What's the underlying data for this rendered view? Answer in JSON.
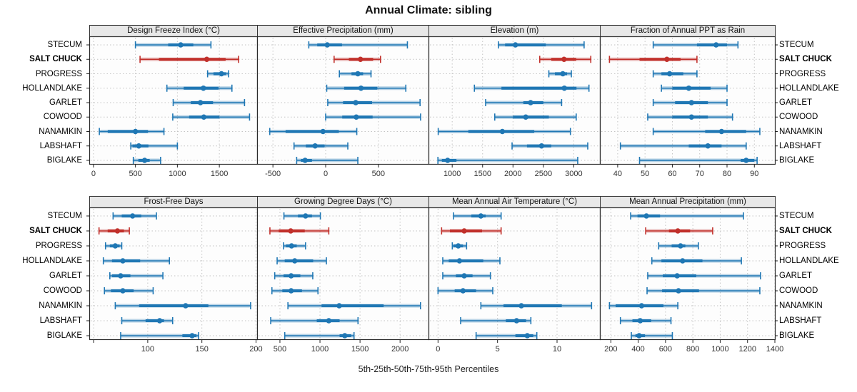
{
  "title": "Annual Climate: sibling",
  "xlabel": "5th-25th-50th-75th-95th Percentiles",
  "percentiles": [
    "5th",
    "25th",
    "50th",
    "75th",
    "95th"
  ],
  "locations": [
    "STECUM",
    "SALT CHUCK",
    "PROGRESS",
    "HOLLANDLAKE",
    "GARLET",
    "COWOOD",
    "NANAMKIN",
    "LABSHAFT",
    "BIGLAKE"
  ],
  "highlighted_location": "SALT CHUCK",
  "colors": {
    "series_blue": "#1F77B4",
    "highlight_red": "#C1302B",
    "header_bg": "#E8E8E8",
    "grid": "#C4C4C4",
    "border": "#2A2A2A",
    "tick_text": "#333333"
  },
  "chart_data": {
    "type": "pointrange",
    "legend_position": "none",
    "grid": "dotted",
    "note": "values per location are [p5, p25, p50, p75, p95]",
    "panels": [
      {
        "title": "Design Freeze Index (°C)",
        "row": 0,
        "col": 0,
        "xlim": [
          -50,
          1950
        ],
        "ticks": [
          0,
          500,
          1000,
          1500
        ],
        "tick_labels": [
          "0",
          "500",
          "1000",
          "1500"
        ],
        "values": {
          "STECUM": [
            500,
            890,
            1040,
            1190,
            1400
          ],
          "SALT CHUCK": [
            555,
            780,
            1350,
            1575,
            1730
          ],
          "PROGRESS": [
            1360,
            1430,
            1525,
            1580,
            1610
          ],
          "HOLLANDLAKE": [
            875,
            1075,
            1310,
            1490,
            1650
          ],
          "GARLET": [
            950,
            1160,
            1275,
            1425,
            1800
          ],
          "COWOOD": [
            945,
            1140,
            1315,
            1500,
            1860
          ],
          "NANAMKIN": [
            70,
            170,
            500,
            650,
            840
          ],
          "LABSHAFT": [
            445,
            465,
            540,
            655,
            1000
          ],
          "BIGLAKE": [
            475,
            535,
            610,
            670,
            800
          ]
        }
      },
      {
        "title": "Effective Precipitation (mm)",
        "row": 0,
        "col": 1,
        "xlim": [
          -650,
          975
        ],
        "ticks": [
          -500,
          0,
          500
        ],
        "tick_labels": [
          "-500",
          "0",
          "500"
        ],
        "values": {
          "STECUM": [
            -160,
            -80,
            15,
            155,
            775
          ],
          "SALT CHUCK": [
            80,
            220,
            330,
            450,
            520
          ],
          "PROGRESS": [
            130,
            245,
            305,
            355,
            430
          ],
          "HOLLANDLAKE": [
            10,
            175,
            335,
            490,
            760
          ],
          "GARLET": [
            20,
            165,
            285,
            440,
            895
          ],
          "COWOOD": [
            0,
            157,
            290,
            445,
            900
          ],
          "NANAMKIN": [
            -530,
            -380,
            -25,
            125,
            295
          ],
          "LABSHAFT": [
            -300,
            -188,
            -100,
            -10,
            210
          ],
          "BIGLAKE": [
            -275,
            -235,
            -195,
            -130,
            305
          ]
        }
      },
      {
        "title": "Elevation (m)",
        "row": 0,
        "col": 2,
        "xlim": [
          610,
          3430
        ],
        "ticks": [
          1000,
          1500,
          2000,
          2500,
          3000
        ],
        "tick_labels": [
          "1000",
          "1500",
          "2000",
          "2500",
          "3000"
        ],
        "values": {
          "STECUM": [
            1760,
            1870,
            2040,
            2540,
            3170
          ],
          "SALT CHUCK": [
            2440,
            2630,
            2840,
            3040,
            3280
          ],
          "PROGRESS": [
            2590,
            2690,
            2820,
            2890,
            2960
          ],
          "HOLLANDLAKE": [
            1365,
            1810,
            2845,
            3045,
            3250
          ],
          "GARLET": [
            1550,
            2170,
            2290,
            2500,
            2800
          ],
          "COWOOD": [
            1700,
            2000,
            2210,
            2590,
            3040
          ],
          "NANAMKIN": [
            770,
            1265,
            1825,
            2350,
            2945
          ],
          "LABSHAFT": [
            1985,
            2230,
            2470,
            2630,
            3230
          ],
          "BIGLAKE": [
            765,
            830,
            925,
            1070,
            3065
          ]
        }
      },
      {
        "title": "Fraction of Annual PPT as Rain",
        "row": 0,
        "col": 3,
        "xlim": [
          33.5,
          97.5
        ],
        "ticks": [
          40,
          50,
          60,
          70,
          80,
          90
        ],
        "tick_labels": [
          "40",
          "50",
          "60",
          "70",
          "80",
          "90"
        ],
        "values": {
          "STECUM": [
            53,
            69,
            76,
            80,
            84
          ],
          "SALT CHUCK": [
            37,
            48,
            58,
            63,
            69
          ],
          "PROGRESS": [
            53,
            56,
            59,
            64,
            69
          ],
          "HOLLANDLAKE": [
            56,
            60,
            66,
            74,
            80
          ],
          "GARLET": [
            53,
            61,
            67,
            73,
            80
          ],
          "COWOOD": [
            51,
            60,
            67,
            73,
            82
          ],
          "NANAMKIN": [
            53,
            72,
            78,
            87,
            92
          ],
          "LABSHAFT": [
            41,
            66,
            73,
            78,
            87
          ],
          "BIGLAKE": [
            48,
            85,
            87,
            90,
            91
          ]
        }
      },
      {
        "title": "Frost-Free Days",
        "row": 1,
        "col": 0,
        "xlim": [
          46,
          201
        ],
        "ticks": [
          50,
          100,
          150,
          200
        ],
        "tick_labels": [
          "",
          "100",
          "150",
          "200"
        ],
        "values": {
          "STECUM": [
            68,
            76,
            86,
            94,
            108
          ],
          "SALT CHUCK": [
            55,
            63,
            72,
            78,
            83
          ],
          "PROGRESS": [
            61,
            65,
            70,
            74,
            76
          ],
          "HOLLANDLAKE": [
            59,
            67,
            77,
            93,
            120
          ],
          "GARLET": [
            65,
            67,
            75,
            84,
            114
          ],
          "COWOOD": [
            60,
            66,
            77,
            87,
            105
          ],
          "NANAMKIN": [
            70,
            92,
            135,
            156,
            195
          ],
          "LABSHAFT": [
            76,
            98,
            111,
            115,
            123
          ],
          "BIGLAKE": [
            75,
            132,
            141,
            145,
            147
          ]
        }
      },
      {
        "title": "Growing Degree Days (°C)",
        "row": 1,
        "col": 1,
        "xlim": [
          215,
          2355
        ],
        "ticks": [
          500,
          1000,
          1500,
          2000
        ],
        "tick_labels": [
          "500",
          "1000",
          "1500",
          "2000"
        ],
        "values": {
          "STECUM": [
            550,
            725,
            820,
            900,
            1005
          ],
          "SALT CHUCK": [
            375,
            485,
            635,
            810,
            1110
          ],
          "PROGRESS": [
            545,
            575,
            645,
            710,
            820
          ],
          "HOLLANDLAKE": [
            465,
            560,
            685,
            915,
            1080
          ],
          "GARLET": [
            435,
            545,
            640,
            755,
            910
          ],
          "COWOOD": [
            400,
            530,
            640,
            775,
            975
          ],
          "NANAMKIN": [
            600,
            1020,
            1240,
            1795,
            2255
          ],
          "LABSHAFT": [
            385,
            960,
            1110,
            1245,
            1475
          ],
          "BIGLAKE": [
            560,
            1245,
            1310,
            1390,
            1425
          ]
        }
      },
      {
        "title": "Mean Annual Air Temperature (°C)",
        "row": 1,
        "col": 2,
        "xlim": [
          -0.8,
          13.6
        ],
        "ticks": [
          0,
          5,
          10
        ],
        "tick_labels": [
          "0",
          "5",
          "10"
        ],
        "values": {
          "STECUM": [
            1.3,
            2.8,
            3.6,
            4.0,
            5.3
          ],
          "SALT CHUCK": [
            0.3,
            1.0,
            2.2,
            3.7,
            5.3
          ],
          "PROGRESS": [
            1.2,
            1.3,
            1.7,
            2.1,
            2.4
          ],
          "HOLLANDLAKE": [
            0.4,
            0.9,
            1.8,
            3.8,
            5.2
          ],
          "GARLET": [
            0.4,
            1.5,
            2.2,
            2.9,
            4.4
          ],
          "COWOOD": [
            0.0,
            1.4,
            2.1,
            3.2,
            4.6
          ],
          "NANAMKIN": [
            3.6,
            5.5,
            7.0,
            10.4,
            12.9
          ],
          "LABSHAFT": [
            1.9,
            5.7,
            6.6,
            7.4,
            7.8
          ],
          "BIGLAKE": [
            3.2,
            6.5,
            7.5,
            8.0,
            8.3
          ]
        }
      },
      {
        "title": "Mean Annual Precipitation (mm)",
        "row": 1,
        "col": 3,
        "xlim": [
          120,
          1400
        ],
        "ticks": [
          200,
          400,
          600,
          800,
          1000,
          1200,
          1400
        ],
        "tick_labels": [
          "200",
          "400",
          "600",
          "800",
          "1000",
          "1200",
          "1400"
        ],
        "values": {
          "STECUM": [
            345,
            395,
            460,
            560,
            1170
          ],
          "SALT CHUCK": [
            455,
            625,
            690,
            780,
            945
          ],
          "PROGRESS": [
            550,
            645,
            710,
            745,
            840
          ],
          "HOLLANDLAKE": [
            500,
            570,
            725,
            870,
            1155
          ],
          "GARLET": [
            470,
            580,
            685,
            825,
            1295
          ],
          "COWOOD": [
            465,
            575,
            695,
            845,
            1290
          ],
          "NANAMKIN": [
            190,
            235,
            425,
            585,
            690
          ],
          "LABSHAFT": [
            270,
            358,
            415,
            495,
            640
          ],
          "BIGLAKE": [
            350,
            380,
            407,
            450,
            650
          ]
        }
      }
    ]
  }
}
